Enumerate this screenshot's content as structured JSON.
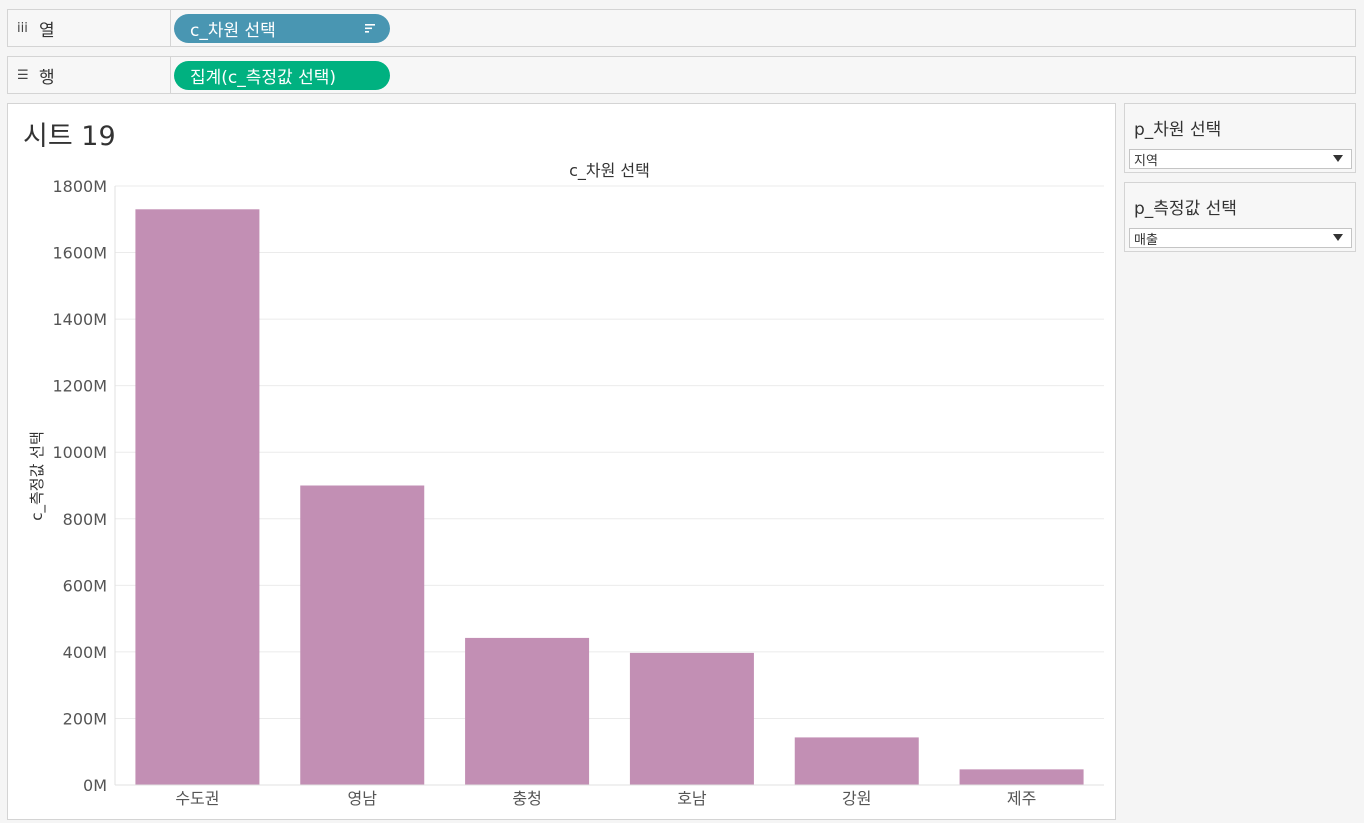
{
  "shelves": {
    "columns": {
      "icon": "columns-icon",
      "label": "열",
      "pill": "c_차원 선택"
    },
    "rows": {
      "icon": "rows-icon",
      "label": "행",
      "pill": "집계(c_측정값 선택)"
    }
  },
  "sheet": {
    "title": "시트 19"
  },
  "params": [
    {
      "title": "p_차원 선택",
      "value": "지역"
    },
    {
      "title": "p_측정값 선택",
      "value": "매출"
    }
  ],
  "colors": {
    "bar": "#c28fb4",
    "pill_dimension": "#4996b2",
    "pill_measure": "#00b180"
  },
  "chart_data": {
    "type": "bar",
    "title": "c_차원 선택",
    "xlabel": "",
    "ylabel": "c_측정값 선택",
    "categories": [
      "수도권",
      "영남",
      "충청",
      "호남",
      "강원",
      "제주"
    ],
    "values": [
      1730,
      900,
      442,
      397,
      143,
      47
    ],
    "value_unit": "M",
    "ylim": [
      0,
      1800
    ],
    "yticks": [
      0,
      200,
      400,
      600,
      800,
      1000,
      1200,
      1400,
      1600,
      1800
    ],
    "ytick_labels": [
      "0M",
      "200M",
      "400M",
      "600M",
      "800M",
      "1000M",
      "1200M",
      "1400M",
      "1600M",
      "1800M"
    ],
    "grid": true,
    "legend": "none"
  }
}
